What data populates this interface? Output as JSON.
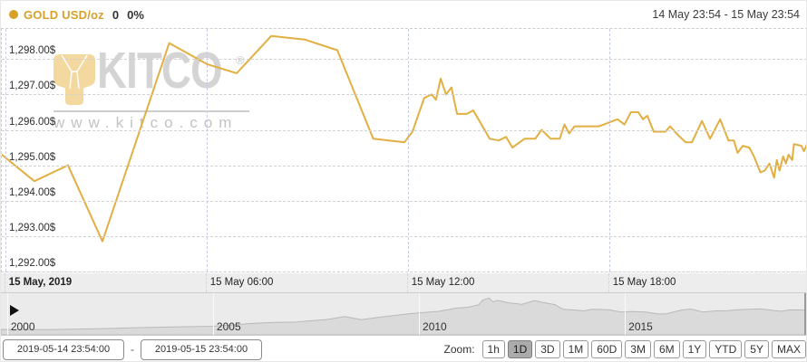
{
  "header": {
    "legend": {
      "dot_color": "#d6a12b",
      "symbol": "GOLD USD/oz",
      "symbol_color": "#d6a12b",
      "change": "0",
      "change_pct": "0%"
    },
    "range_text": "14 May 23:54 - 15 May 23:54"
  },
  "watermark": {
    "brand": "KITCO",
    "reg": "®",
    "url": "www.kitco.com"
  },
  "chart_data": [
    {
      "type": "line",
      "title": "GOLD USD/oz intraday",
      "line_color": "#e2af42",
      "x_unit": "hours since 14 May 23:54",
      "xlim": [
        0,
        24
      ],
      "ylim": [
        1292.0,
        1298.85
      ],
      "grid": "dashed",
      "y_ticks": [
        {
          "value": 1298,
          "label": "1,298.00$"
        },
        {
          "value": 1297,
          "label": "1,297.00$"
        },
        {
          "value": 1296,
          "label": "1,296.00$"
        },
        {
          "value": 1295,
          "label": "1,295.00$"
        },
        {
          "value": 1294,
          "label": "1,294.00$"
        },
        {
          "value": 1293,
          "label": "1,293.00$"
        },
        {
          "value": 1292,
          "label": "1,292.00$"
        }
      ],
      "x_ticks": [
        {
          "t": 0.1,
          "label": "15 May, 2019",
          "bold": true
        },
        {
          "t": 6.1,
          "label": "15 May 06:00",
          "bold": false
        },
        {
          "t": 12.1,
          "label": "15 May 12:00",
          "bold": false
        },
        {
          "t": 18.1,
          "label": "15 May 18:00",
          "bold": false
        }
      ],
      "points": [
        [
          0,
          1295.3
        ],
        [
          0.97,
          1294.55
        ],
        [
          1.97,
          1295.0
        ],
        [
          3.0,
          1292.85
        ],
        [
          4.99,
          1298.45
        ],
        [
          6.13,
          1297.85
        ],
        [
          7.0,
          1297.6
        ],
        [
          8.03,
          1298.65
        ],
        [
          9.03,
          1298.55
        ],
        [
          10.0,
          1298.25
        ],
        [
          11.07,
          1295.75
        ],
        [
          12.0,
          1295.65
        ],
        [
          12.24,
          1295.95
        ],
        [
          12.59,
          1296.9
        ],
        [
          12.81,
          1297.0
        ],
        [
          12.94,
          1296.85
        ],
        [
          13.08,
          1297.45
        ],
        [
          13.24,
          1297.0
        ],
        [
          13.4,
          1297.2
        ],
        [
          13.57,
          1296.45
        ],
        [
          13.86,
          1296.45
        ],
        [
          14.05,
          1296.55
        ],
        [
          14.33,
          1296.1
        ],
        [
          14.54,
          1295.75
        ],
        [
          14.81,
          1295.7
        ],
        [
          15.03,
          1295.8
        ],
        [
          15.22,
          1295.5
        ],
        [
          15.58,
          1295.75
        ],
        [
          15.9,
          1295.75
        ],
        [
          16.09,
          1296.0
        ],
        [
          16.36,
          1295.75
        ],
        [
          16.63,
          1295.75
        ],
        [
          16.77,
          1296.15
        ],
        [
          16.91,
          1295.9
        ],
        [
          17.07,
          1296.1
        ],
        [
          17.8,
          1296.1
        ],
        [
          18.35,
          1296.3
        ],
        [
          18.56,
          1296.15
        ],
        [
          18.75,
          1296.5
        ],
        [
          18.97,
          1296.5
        ],
        [
          19.11,
          1296.3
        ],
        [
          19.24,
          1296.4
        ],
        [
          19.43,
          1295.95
        ],
        [
          19.78,
          1295.95
        ],
        [
          19.92,
          1296.1
        ],
        [
          20.16,
          1295.85
        ],
        [
          20.38,
          1295.65
        ],
        [
          20.57,
          1295.65
        ],
        [
          20.87,
          1296.25
        ],
        [
          21.11,
          1295.75
        ],
        [
          21.41,
          1296.3
        ],
        [
          21.66,
          1295.7
        ],
        [
          21.82,
          1295.7
        ],
        [
          21.93,
          1295.35
        ],
        [
          22.09,
          1295.55
        ],
        [
          22.28,
          1295.5
        ],
        [
          22.42,
          1295.25
        ],
        [
          22.61,
          1294.8
        ],
        [
          22.74,
          1294.85
        ],
        [
          22.88,
          1295.05
        ],
        [
          23.02,
          1294.65
        ],
        [
          23.1,
          1295.15
        ],
        [
          23.18,
          1294.85
        ],
        [
          23.29,
          1295.25
        ],
        [
          23.37,
          1295.05
        ],
        [
          23.45,
          1295.3
        ],
        [
          23.56,
          1295.15
        ],
        [
          23.61,
          1295.6
        ],
        [
          23.83,
          1295.55
        ],
        [
          23.91,
          1295.4
        ],
        [
          24,
          1295.6
        ]
      ]
    },
    {
      "type": "area",
      "title": "Gold price history navigator",
      "fill_color": "#dadada",
      "stroke_color": "#b9b9b9",
      "x_unit": "year",
      "xlim": [
        1999.85,
        2019.4
      ],
      "ylim": [
        0,
        2150
      ],
      "x_ticks": [
        {
          "year": 2000,
          "label": "2000"
        },
        {
          "year": 2005,
          "label": "2005"
        },
        {
          "year": 2010,
          "label": "2010"
        },
        {
          "year": 2015,
          "label": "2015"
        }
      ],
      "points": [
        [
          1999.85,
          280
        ],
        [
          2001,
          270
        ],
        [
          2002,
          310
        ],
        [
          2003,
          360
        ],
        [
          2004,
          410
        ],
        [
          2005,
          445
        ],
        [
          2006,
          600
        ],
        [
          2006.5,
          640
        ],
        [
          2007,
          660
        ],
        [
          2007.8,
          800
        ],
        [
          2008.2,
          950
        ],
        [
          2008.6,
          780
        ],
        [
          2009,
          900
        ],
        [
          2009.8,
          1100
        ],
        [
          2010.5,
          1220
        ],
        [
          2010.9,
          1380
        ],
        [
          2011.2,
          1430
        ],
        [
          2011.45,
          1550
        ],
        [
          2011.55,
          1800
        ],
        [
          2011.7,
          1900
        ],
        [
          2011.8,
          1700
        ],
        [
          2011.9,
          1780
        ],
        [
          2012.2,
          1650
        ],
        [
          2012.5,
          1580
        ],
        [
          2012.8,
          1770
        ],
        [
          2013.0,
          1680
        ],
        [
          2013.3,
          1560
        ],
        [
          2013.5,
          1320
        ],
        [
          2013.8,
          1280
        ],
        [
          2014.0,
          1240
        ],
        [
          2014.2,
          1320
        ],
        [
          2014.6,
          1300
        ],
        [
          2014.9,
          1180
        ],
        [
          2015.2,
          1200
        ],
        [
          2015.5,
          1180
        ],
        [
          2015.8,
          1080
        ],
        [
          2016.0,
          1090
        ],
        [
          2016.4,
          1290
        ],
        [
          2016.6,
          1330
        ],
        [
          2016.9,
          1180
        ],
        [
          2017.2,
          1240
        ],
        [
          2017.5,
          1250
        ],
        [
          2017.7,
          1290
        ],
        [
          2018.0,
          1320
        ],
        [
          2018.3,
          1340
        ],
        [
          2018.6,
          1260
        ],
        [
          2018.8,
          1220
        ],
        [
          2019.0,
          1290
        ],
        [
          2019.4,
          1285
        ]
      ]
    }
  ],
  "controls": {
    "from_value": "2019-05-14 23:54:00",
    "separator": "-",
    "to_value": "2019-05-15 23:54:00",
    "zoom_label": "Zoom:",
    "zoom_buttons": [
      "1h",
      "1D",
      "3D",
      "1M",
      "60D",
      "3M",
      "6M",
      "1Y",
      "YTD",
      "5Y",
      "MAX"
    ],
    "selected_zoom": "1D"
  }
}
